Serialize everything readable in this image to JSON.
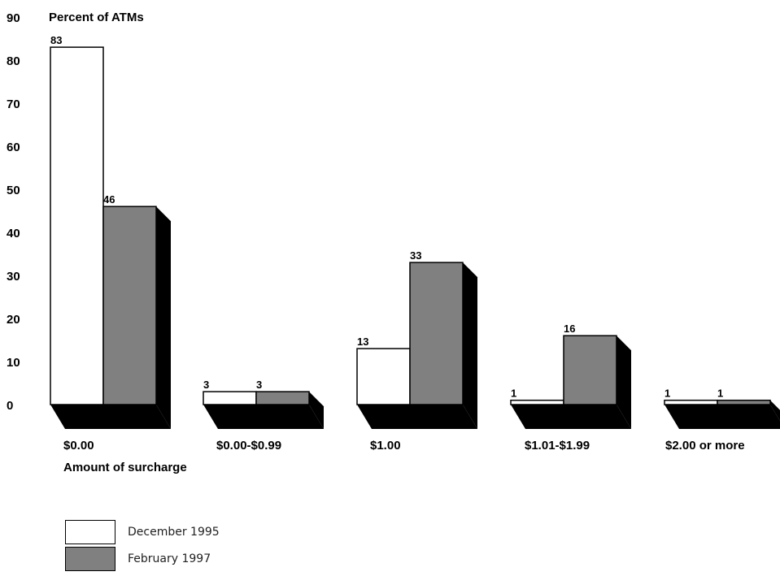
{
  "chart_data": {
    "type": "bar",
    "ylabel": "Percent of ATMs",
    "xlabel": "Amount of surcharge",
    "ylim": [
      0,
      90
    ],
    "yticks": [
      0,
      10,
      20,
      30,
      40,
      50,
      60,
      70,
      80,
      90
    ],
    "categories": [
      "$0.00",
      "$0.00-$0.99",
      "$1.00",
      "$1.01-$1.99",
      "$2.00 or more"
    ],
    "series": [
      {
        "name": "December 1995",
        "values": [
          83,
          3,
          13,
          1,
          1
        ],
        "color": "#ffffff"
      },
      {
        "name": "February 1997",
        "values": [
          46,
          3,
          33,
          16,
          1
        ],
        "color": "#808080"
      }
    ],
    "data_labels": true,
    "legend_position": "bottom-left",
    "grid": false,
    "style": "3d",
    "shadow_color": "#000000"
  }
}
